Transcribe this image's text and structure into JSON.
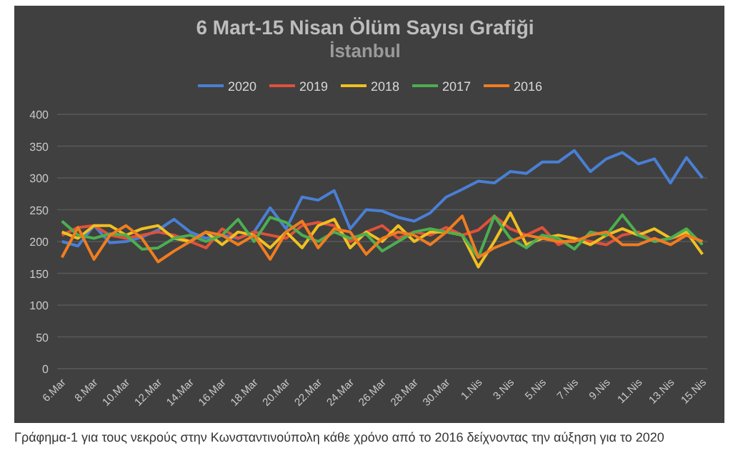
{
  "chart_data": {
    "type": "line",
    "title": "6 Mart-15 Nisan Ölüm Sayısı Grafiği",
    "subtitle": "İstanbul",
    "categories": [
      "6.Mar",
      null,
      "8.Mar",
      null,
      "10.Mar",
      null,
      "12.Mar",
      null,
      "14.Mar",
      null,
      "16.Mar",
      null,
      "18.Mar",
      null,
      "20.Mar",
      null,
      "22.Mar",
      null,
      "24.Mar",
      null,
      "26.Mar",
      null,
      "28.Mar",
      null,
      "30.Mar",
      null,
      "1.Nis",
      null,
      "3.Nis",
      null,
      "5.Nis",
      null,
      "7.Nis",
      null,
      "9.Nis",
      null,
      "11.Nis",
      null,
      "13.Nis",
      null,
      "15.Nis"
    ],
    "series": [
      {
        "name": "2020",
        "color": "#4a7fd4",
        "values": [
          200,
          193,
          225,
          198,
          200,
          207,
          218,
          235,
          215,
          205,
          210,
          205,
          215,
          253,
          220,
          270,
          265,
          280,
          220,
          250,
          248,
          238,
          232,
          245,
          270,
          282,
          295,
          292,
          310,
          307,
          325,
          325,
          343,
          310,
          330,
          340,
          322,
          330,
          292,
          332,
          300
        ]
      },
      {
        "name": "2019",
        "color": "#e0513a",
        "values": [
          210,
          222,
          225,
          210,
          205,
          210,
          215,
          210,
          200,
          190,
          220,
          205,
          215,
          210,
          205,
          225,
          230,
          225,
          200,
          215,
          225,
          205,
          215,
          210,
          222,
          210,
          218,
          240,
          220,
          210,
          222,
          195,
          205,
          200,
          195,
          210,
          215,
          200,
          205,
          210,
          200
        ]
      },
      {
        "name": "2018",
        "color": "#f0c020",
        "values": [
          215,
          205,
          225,
          225,
          210,
          220,
          225,
          205,
          200,
          215,
          195,
          215,
          210,
          190,
          215,
          190,
          225,
          235,
          190,
          215,
          200,
          225,
          200,
          215,
          215,
          210,
          160,
          200,
          245,
          195,
          205,
          210,
          205,
          195,
          210,
          220,
          210,
          220,
          205,
          215,
          180
        ]
      },
      {
        "name": "2017",
        "color": "#4caf50",
        "values": [
          232,
          210,
          205,
          212,
          210,
          188,
          190,
          205,
          210,
          200,
          210,
          235,
          200,
          238,
          230,
          210,
          200,
          215,
          205,
          212,
          185,
          200,
          215,
          220,
          215,
          210,
          175,
          240,
          205,
          190,
          210,
          205,
          188,
          215,
          210,
          242,
          210,
          200,
          205,
          220,
          195
        ]
      },
      {
        "name": "2016",
        "color": "#f07d20",
        "values": [
          175,
          222,
          172,
          210,
          225,
          205,
          168,
          185,
          200,
          215,
          210,
          195,
          210,
          172,
          215,
          232,
          190,
          220,
          215,
          180,
          205,
          215,
          210,
          195,
          215,
          240,
          175,
          190,
          200,
          210,
          205,
          200,
          200,
          210,
          215,
          195,
          195,
          205,
          195,
          210,
          200
        ]
      }
    ],
    "ylim": [
      0,
      400
    ],
    "yticks": [
      0,
      50,
      100,
      150,
      200,
      250,
      300,
      350,
      400
    ],
    "grid": "y",
    "legend": "top",
    "marker": "none",
    "line_style": "solid",
    "annotations": [
      "Γράφημα-1 για τους νεκρούς στην Κωνσταντινούπολη κάθε χρόνο από το 2016 δείχνοντας την αύξηση για το 2020"
    ]
  }
}
